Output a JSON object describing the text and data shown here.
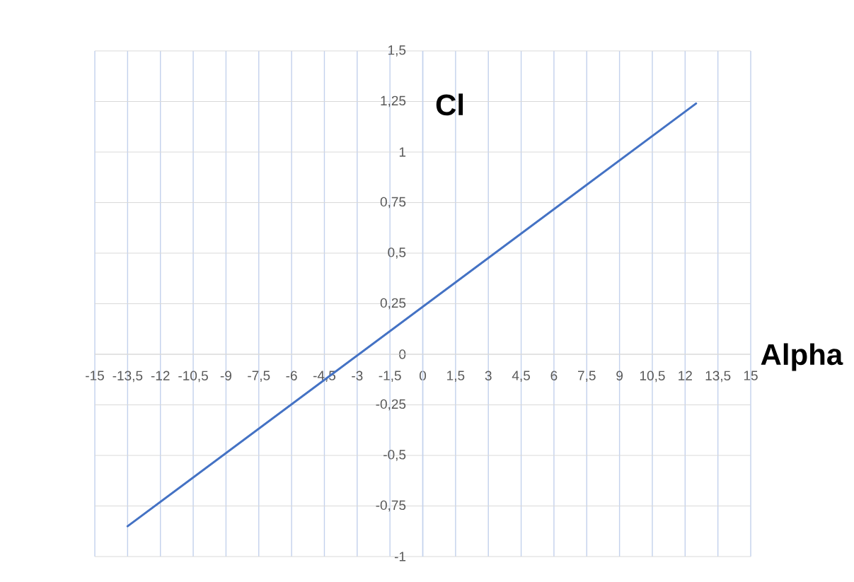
{
  "chart_data": {
    "type": "line",
    "xlabel": "Alpha",
    "ylabel": "Cl",
    "x": [
      -13.5,
      12.5
    ],
    "series": [
      {
        "color": "#4472c4",
        "values": [
          -0.85,
          1.24
        ]
      }
    ],
    "xlim": [
      -15,
      15
    ],
    "ylim": [
      -1,
      1.5
    ],
    "xticks": [
      -15,
      {
        "value": -13.5,
        "label": "-13,5"
      },
      -12,
      {
        "value": -10.5,
        "label": "-10,5"
      },
      -9,
      {
        "value": -7.5,
        "label": "-7,5"
      },
      -6,
      {
        "value": -4.5,
        "label": "-4,5"
      },
      -3,
      {
        "value": -1.5,
        "label": "-1,5"
      },
      0,
      {
        "value": 1.5,
        "label": "1,5"
      },
      3,
      {
        "value": 4.5,
        "label": "4,5"
      },
      6,
      {
        "value": 7.5,
        "label": "7,5"
      },
      9,
      {
        "value": 10.5,
        "label": "10,5"
      },
      12,
      {
        "value": 13.5,
        "label": "13,5"
      },
      15
    ],
    "yticks": [
      -1,
      {
        "value": -0.75,
        "label": "-0,75"
      },
      {
        "value": -0.5,
        "label": "-0,5"
      },
      {
        "value": -0.25,
        "label": "-0,25"
      },
      0,
      {
        "value": 0.25,
        "label": "0,25"
      },
      {
        "value": 0.5,
        "label": "0,5"
      },
      {
        "value": 0.75,
        "label": "0,75"
      },
      1,
      {
        "value": 1.25,
        "label": "1,25"
      },
      {
        "value": 1.5,
        "label": "1,5"
      }
    ],
    "grid": true,
    "marker": "none",
    "line_style": "solid"
  }
}
